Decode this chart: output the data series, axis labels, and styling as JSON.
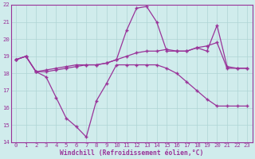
{
  "xlabel": "Windchill (Refroidissement éolien,°C)",
  "xlim": [
    -0.5,
    23.5
  ],
  "ylim": [
    14,
    22
  ],
  "yticks": [
    14,
    15,
    16,
    17,
    18,
    19,
    20,
    21,
    22
  ],
  "xticks": [
    0,
    1,
    2,
    3,
    4,
    5,
    6,
    7,
    8,
    9,
    10,
    11,
    12,
    13,
    14,
    15,
    16,
    17,
    18,
    19,
    20,
    21,
    22,
    23
  ],
  "line_color": "#993399",
  "bg_color": "#d0ecec",
  "grid_color": "#aed4d4",
  "line1_x": [
    0,
    1,
    2,
    3,
    4,
    5,
    6,
    7,
    8,
    9,
    10,
    11,
    12,
    13,
    14,
    15,
    16,
    17,
    18,
    19,
    20,
    21,
    22,
    23
  ],
  "line1_y": [
    18.8,
    19.0,
    18.1,
    17.8,
    16.6,
    15.4,
    14.9,
    14.3,
    16.4,
    17.4,
    18.5,
    18.5,
    18.5,
    18.5,
    18.5,
    18.3,
    18.0,
    17.5,
    17.0,
    16.5,
    16.1,
    16.1,
    16.1,
    16.1
  ],
  "line2_x": [
    0,
    1,
    2,
    3,
    4,
    5,
    6,
    7,
    8,
    9,
    10,
    11,
    12,
    13,
    14,
    15,
    16,
    17,
    18,
    19,
    20,
    21,
    22,
    23
  ],
  "line2_y": [
    18.8,
    19.0,
    18.1,
    18.2,
    18.3,
    18.4,
    18.5,
    18.5,
    18.5,
    18.6,
    18.8,
    20.5,
    21.8,
    21.9,
    21.0,
    19.3,
    19.3,
    19.3,
    19.5,
    19.3,
    20.8,
    18.4,
    18.3,
    18.3
  ],
  "line3_x": [
    0,
    1,
    2,
    3,
    4,
    5,
    6,
    7,
    8,
    9,
    10,
    11,
    12,
    13,
    14,
    15,
    16,
    17,
    18,
    19,
    20,
    21,
    22,
    23
  ],
  "line3_y": [
    18.8,
    19.0,
    18.1,
    18.1,
    18.2,
    18.3,
    18.4,
    18.5,
    18.5,
    18.6,
    18.8,
    19.0,
    19.2,
    19.3,
    19.3,
    19.4,
    19.3,
    19.3,
    19.5,
    19.6,
    19.8,
    18.3,
    18.3,
    18.3
  ]
}
